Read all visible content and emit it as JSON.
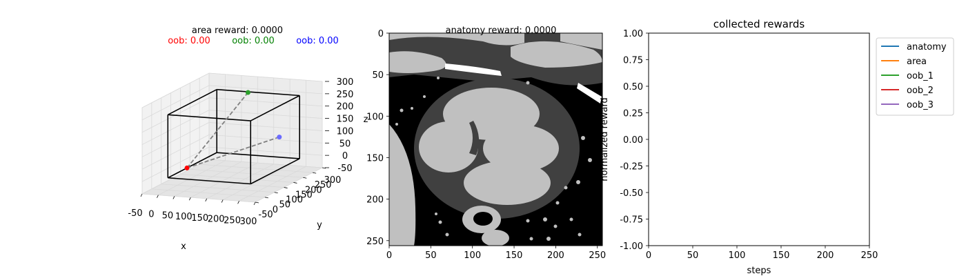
{
  "chart_data": [
    {
      "type": "scatter",
      "kind": "3d",
      "title": "area reward: 0.0000",
      "oob_labels": [
        {
          "text": "oob: 0.00",
          "color": "#ff0000"
        },
        {
          "text": "oob: 0.00",
          "color": "#008000"
        },
        {
          "text": "oob: 0.00",
          "color": "#0000ff"
        }
      ],
      "xlabel": "x",
      "ylabel": "y",
      "zlabel": "z",
      "xlim": [
        -50,
        300
      ],
      "ylim": [
        -50,
        300
      ],
      "zlim": [
        -50,
        300
      ],
      "x_ticks": [
        -50,
        0,
        50,
        100,
        150,
        200,
        250,
        300
      ],
      "y_ticks": [
        -50,
        0,
        50,
        100,
        150,
        200,
        250,
        300
      ],
      "z_ticks": [
        -50,
        0,
        50,
        100,
        150,
        200,
        250,
        300
      ],
      "points": [
        {
          "x": 0,
          "y": 100,
          "z": 0,
          "color": "#ff0000"
        },
        {
          "x": 100,
          "y": 250,
          "z": 256,
          "color": "#2ca02c"
        },
        {
          "x": 256,
          "y": 150,
          "z": 130,
          "color": "#6b6bff"
        }
      ],
      "box": [
        0,
        256
      ],
      "grid": true
    },
    {
      "type": "heatmap",
      "title": "anatomy reward: 0.0000",
      "xlim": [
        0,
        256
      ],
      "ylim": [
        256,
        0
      ],
      "x_ticks": [
        0,
        50,
        100,
        150,
        200,
        250
      ],
      "y_ticks": [
        0,
        50,
        100,
        150,
        200,
        250
      ],
      "colors": {
        "background": "#000000",
        "tissue": "#404040",
        "organ": "#c0c0c0",
        "bone": "#ffffff"
      }
    },
    {
      "type": "line",
      "title": "collected rewards",
      "xlabel": "steps",
      "ylabel": "normalized reward",
      "xlim": [
        0,
        250
      ],
      "ylim": [
        -1.0,
        1.0
      ],
      "x_ticks": [
        0,
        50,
        100,
        150,
        200,
        250
      ],
      "y_ticks": [
        "-1.00",
        "-0.75",
        "-0.50",
        "-0.25",
        "0.00",
        "0.25",
        "0.50",
        "0.75",
        "1.00"
      ],
      "legend_position": "outside-right",
      "series": [
        {
          "name": "anatomy",
          "color": "#1f77b4",
          "values": []
        },
        {
          "name": "area",
          "color": "#ff7f0e",
          "values": []
        },
        {
          "name": "oob_1",
          "color": "#2ca02c",
          "values": []
        },
        {
          "name": "oob_2",
          "color": "#d62728",
          "values": []
        },
        {
          "name": "oob_3",
          "color": "#9467bd",
          "values": []
        }
      ]
    }
  ]
}
